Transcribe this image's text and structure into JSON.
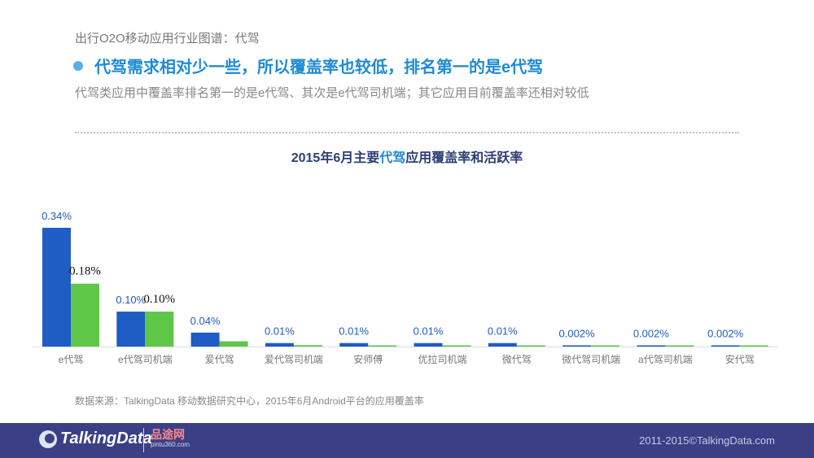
{
  "header": {
    "breadcrumb": "出行O2O移动应用行业图谱：代驾",
    "headline": "代驾需求相对少一些，所以覆盖率也较低，排名第一的是e代驾",
    "subline": "代驾类应用中覆盖率排名第一的是e代驾、其次是e代驾司机端；其它应用目前覆盖率还相对较低"
  },
  "chart_title": {
    "prefix": "2015年6月主要",
    "highlight": "代驾",
    "suffix": "应用覆盖率和活跃率"
  },
  "chart_data": {
    "type": "bar",
    "title": "2015年6月主要代驾应用覆盖率和活跃率",
    "xlabel": "",
    "ylabel": "",
    "ylim": [
      0,
      0.34
    ],
    "grid": false,
    "categories": [
      "e代驾",
      "e代驾司机端",
      "爱代驾",
      "爱代驾司机端",
      "安师傅",
      "优拉司机端",
      "微代驾",
      "微代驾司机端",
      "a代驾司机端",
      "安代驾"
    ],
    "series": [
      {
        "values": [
          0.34,
          0.1,
          0.04,
          0.01,
          0.01,
          0.01,
          0.01,
          0.002,
          0.002,
          0.002
        ],
        "labels": [
          "0.34%",
          "0.10%",
          "0.04%",
          "0.01%",
          "0.01%",
          "0.01%",
          "0.01%",
          "0.002%",
          "0.002%",
          "0.002%"
        ],
        "color": "#1f5cc4"
      },
      {
        "values": [
          0.18,
          0.1,
          0.015,
          0.004,
          0.003,
          0.002,
          0.002,
          0.001,
          0.001,
          0.001
        ],
        "labels": [
          "0.18%",
          "0.10%",
          "",
          "",
          "",
          "",
          "",
          "",
          "",
          ""
        ],
        "color": "#5fc748"
      }
    ]
  },
  "source": "数据来源：TalkingData 移动数据研究中心，2015年6月Android平台的应用覆盖率",
  "footer": {
    "logo": "TalkingData",
    "partner_name": "品途网",
    "partner_url": "pintu360.com",
    "copyright": "2011-2015©TalkingData.com"
  }
}
